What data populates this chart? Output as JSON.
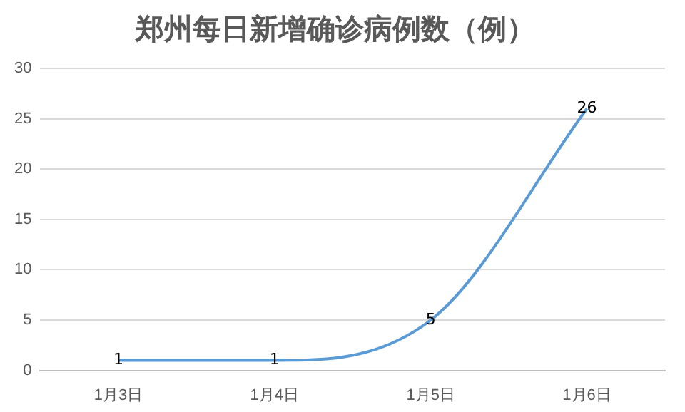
{
  "chart_data": {
    "type": "line",
    "title": "郑州每日新增确诊病例数（例）",
    "categories": [
      "1月3日",
      "1月4日",
      "1月5日",
      "1月6日"
    ],
    "series": [
      {
        "color": "#5b9bd5",
        "values": [
          1,
          1,
          5,
          26
        ]
      }
    ],
    "ylim": [
      0,
      30
    ],
    "yticks": [
      0,
      5,
      10,
      15,
      20,
      25,
      30
    ],
    "grid": "y",
    "legend": false,
    "marker": "none",
    "data_labels": true
  }
}
